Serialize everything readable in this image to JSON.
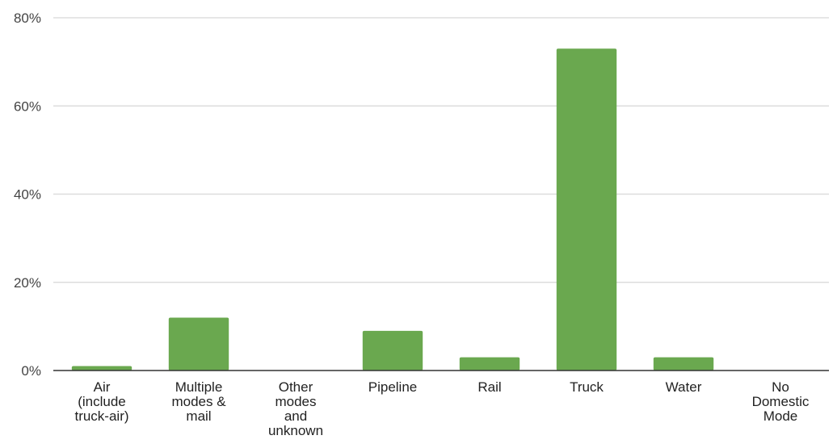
{
  "chart_data": {
    "type": "bar",
    "categories": [
      [
        "Air",
        "(include",
        "truck-air)"
      ],
      [
        "Multiple",
        "modes &",
        "mail"
      ],
      [
        "Other",
        "modes",
        "and",
        "unknown"
      ],
      [
        "Pipeline"
      ],
      [
        "Rail"
      ],
      [
        "Truck"
      ],
      [
        "Water"
      ],
      [
        "No",
        "Domestic",
        "Mode"
      ]
    ],
    "values": [
      1,
      12,
      0,
      9,
      3,
      73,
      3,
      0
    ],
    "ylim": [
      0,
      80
    ],
    "yticks": [
      0,
      20,
      40,
      60,
      80
    ],
    "ytick_labels": [
      "0%",
      "20%",
      "40%",
      "60%",
      "80%"
    ],
    "grid": true,
    "bar_color": "#6aa84f",
    "grid_color": "#dddddd",
    "axis_color": "#333333"
  }
}
